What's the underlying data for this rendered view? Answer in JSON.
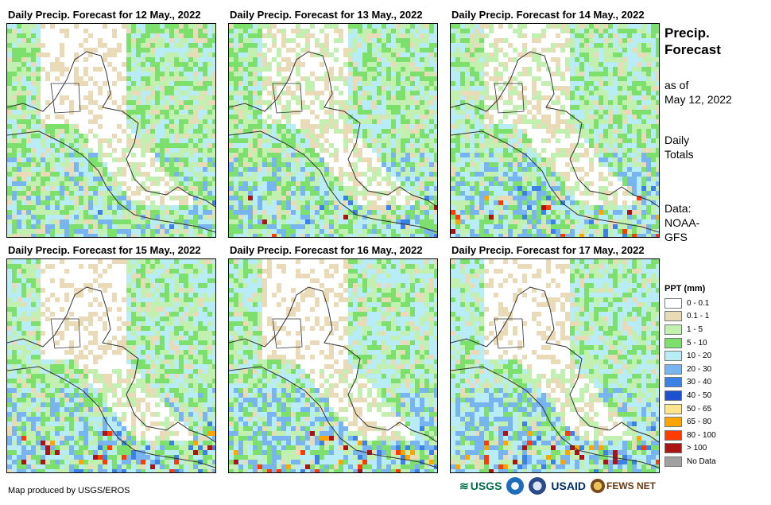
{
  "panels": [
    {
      "title": "Daily Precip. Forecast for 12 May., 2022"
    },
    {
      "title": "Daily Precip. Forecast for 13 May., 2022"
    },
    {
      "title": "Daily Precip. Forecast for 14 May., 2022"
    },
    {
      "title": "Daily Precip. Forecast for 15 May., 2022"
    },
    {
      "title": "Daily Precip. Forecast for 16 May., 2022"
    },
    {
      "title": "Daily Precip. Forecast for 17 May., 2022"
    }
  ],
  "side": {
    "title_line1": "Precip.",
    "title_line2": "Forecast",
    "asof_line1": "as of",
    "asof_line2": "May 12, 2022",
    "totals_line1": "Daily",
    "totals_line2": "Totals",
    "data_line1": "Data:",
    "data_line2": "NOAA-",
    "data_line3": "GFS"
  },
  "legend": {
    "title": "PPT (mm)",
    "items": [
      {
        "label": "0 - 0.1",
        "color": "#ffffff"
      },
      {
        "label": "0.1 - 1",
        "color": "#eadbb8"
      },
      {
        "label": "1 - 5",
        "color": "#c2f0b0"
      },
      {
        "label": "5 - 10",
        "color": "#7ee06c"
      },
      {
        "label": "10 - 20",
        "color": "#b8ecf6"
      },
      {
        "label": "20 - 30",
        "color": "#78b4f0"
      },
      {
        "label": "30 - 40",
        "color": "#3c82e6"
      },
      {
        "label": "40 - 50",
        "color": "#1e50d2"
      },
      {
        "label": "50 - 65",
        "color": "#ffe68c"
      },
      {
        "label": "65 - 80",
        "color": "#ffa500"
      },
      {
        "label": "80 - 100",
        "color": "#ff3c00"
      },
      {
        "label": "> 100",
        "color": "#aa1414"
      },
      {
        "label": "No Data",
        "color": "#a0a0a0"
      }
    ]
  },
  "credit": "Map produced by USGS/EROS",
  "logos": {
    "usgs": "USGS",
    "usaid": "USAID",
    "fewsnet": "FEWS NET"
  }
}
